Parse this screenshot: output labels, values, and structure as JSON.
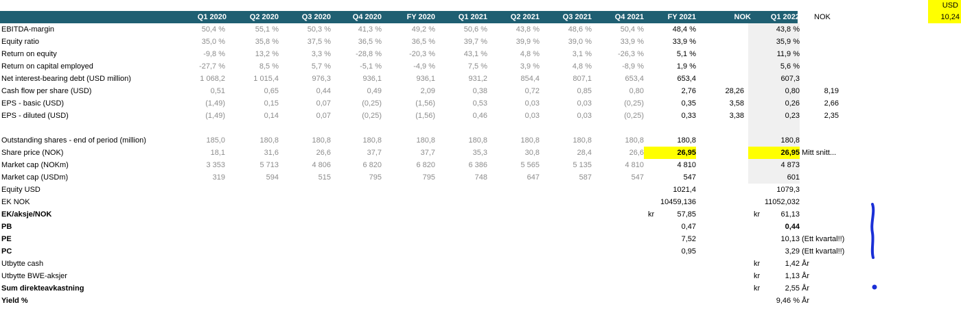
{
  "corner": {
    "currency": "USD",
    "rate": "10,24"
  },
  "header": {
    "periods": [
      "Q1 2020",
      "Q2 2020",
      "Q3 2020",
      "Q4 2020",
      "FY 2020",
      "Q1 2021",
      "Q2 2021",
      "Q3 2021",
      "Q4 2021",
      "FY 2021",
      "NOK",
      "Q1 2022"
    ],
    "nok_right": "NOK"
  },
  "rows": [
    {
      "label": "EBITDA-margin",
      "hist": [
        "50,4 %",
        "55,1 %",
        "50,3 %",
        "41,3 %",
        "49,2 %",
        "50,6 %",
        "43,8 %",
        "48,6 %",
        "50,4 %"
      ],
      "fy21": "48,4 %",
      "nok": "",
      "q122": "43,8 %",
      "nok2": ""
    },
    {
      "label": "Equity ratio",
      "hist": [
        "35,0 %",
        "35,8 %",
        "37,5 %",
        "36,5 %",
        "36,5 %",
        "39,7 %",
        "39,9 %",
        "39,0 %",
        "33,9 %"
      ],
      "fy21": "33,9 %",
      "nok": "",
      "q122": "35,9 %",
      "nok2": ""
    },
    {
      "label": "Return on equity",
      "hist": [
        "-9,8 %",
        "13,2 %",
        "3,3 %",
        "-28,8 %",
        "-20,3 %",
        "43,1 %",
        "4,8 %",
        "3,1 %",
        "-26,3 %"
      ],
      "fy21": "5,1 %",
      "nok": "",
      "q122": "11,9 %",
      "nok2": ""
    },
    {
      "label": "Return on capital employed",
      "hist": [
        "-27,7 %",
        "8,5 %",
        "5,7 %",
        "-5,1 %",
        "-4,9 %",
        "7,5 %",
        "3,9 %",
        "4,8 %",
        "-8,9 %"
      ],
      "fy21": "1,9 %",
      "nok": "",
      "q122": "5,6 %",
      "nok2": ""
    },
    {
      "label": "Net interest-bearing debt (USD million)",
      "hist": [
        "1 068,2",
        "1 015,4",
        "976,3",
        "936,1",
        "936,1",
        "931,2",
        "854,4",
        "807,1",
        "653,4"
      ],
      "fy21": "653,4",
      "nok": "",
      "q122": "607,3",
      "nok2": ""
    },
    {
      "label": "Cash flow per share (USD)",
      "hist": [
        "0,51",
        "0,65",
        "0,44",
        "0,49",
        "2,09",
        "0,38",
        "0,72",
        "0,85",
        "0,80"
      ],
      "fy21": "2,76",
      "nok": "28,26",
      "q122": "0,80",
      "nok2": "8,19"
    },
    {
      "label": "EPS - basic (USD)",
      "hist": [
        "(1,49)",
        "0,15",
        "0,07",
        "(0,25)",
        "(1,56)",
        "0,53",
        "0,03",
        "0,03",
        "(0,25)"
      ],
      "fy21": "0,35",
      "nok": "3,58",
      "q122": "0,26",
      "nok2": "2,66"
    },
    {
      "label": "EPS - diluted (USD)",
      "hist": [
        "(1,49)",
        "0,14",
        "0,07",
        "(0,25)",
        "(1,56)",
        "0,46",
        "0,03",
        "0,03",
        "(0,25)"
      ],
      "fy21": "0,33",
      "nok": "3,38",
      "q122": "0,23",
      "nok2": "2,35"
    },
    {
      "label": "",
      "hist": [
        "",
        "",
        "",
        "",
        "",
        "",
        "",
        "",
        ""
      ],
      "fy21": "",
      "nok": "",
      "q122": "",
      "nok2": ""
    },
    {
      "label": "Outstanding shares - end of period (million)",
      "hist": [
        "185,0",
        "180,8",
        "180,8",
        "180,8",
        "180,8",
        "180,8",
        "180,8",
        "180,8",
        "180,8"
      ],
      "fy21": "180,8",
      "nok": "",
      "q122": "180,8",
      "nok2": ""
    },
    {
      "label": "Share price (NOK)",
      "hist": [
        "18,1",
        "31,6",
        "26,6",
        "37,7",
        "37,7",
        "35,3",
        "30,8",
        "28,4",
        "26,6"
      ],
      "fy21": "26,95",
      "nok": "",
      "q122": "26,95",
      "nok2": "Mitt snitt..."
    },
    {
      "label": "Market cap (NOKm)",
      "hist": [
        "3 353",
        "5 713",
        "4 806",
        "6 820",
        "6 820",
        "6 386",
        "5 565",
        "5 135",
        "4 810"
      ],
      "fy21": "4 810",
      "nok": "",
      "q122": "4 873",
      "nok2": ""
    },
    {
      "label": "Market cap (USDm)",
      "hist": [
        "319",
        "594",
        "515",
        "795",
        "795",
        "748",
        "647",
        "587",
        "547"
      ],
      "fy21": "547",
      "nok": "",
      "q122": "601",
      "nok2": ""
    }
  ],
  "extra": {
    "equity_usd": {
      "label": "Equity USD",
      "fy21": "1021,4",
      "q122": "1079,3"
    },
    "ek_nok": {
      "label": "EK NOK",
      "fy21": "10459,136",
      "q122": "11052,032"
    },
    "ek_aksje": {
      "label": "EK/aksje/NOK",
      "kr": "kr",
      "fy21": "57,85",
      "q122": "61,13"
    },
    "pb": {
      "label": "PB",
      "fy21": "0,47",
      "q122": "0,44"
    },
    "pe": {
      "label": "PE",
      "fy21": "7,52",
      "q122": "10,13",
      "note": "(Ett kvartal!!)"
    },
    "pc": {
      "label": "PC",
      "fy21": "0,95",
      "q122": "3,29",
      "note": "(Ett kvartal!!)"
    },
    "utbytte_cash": {
      "label": "Utbytte cash",
      "kr": "kr",
      "value": "1,42",
      "unit": "År"
    },
    "utbytte_bwe": {
      "label": "Utbytte BWE-aksjer",
      "kr": "kr",
      "value": "1,13",
      "unit": "År"
    },
    "sum": {
      "label": "Sum direkteavkastning",
      "kr": "kr",
      "value": "2,55",
      "unit": "År"
    },
    "yield": {
      "label": "Yield %",
      "value": "9,46 %",
      "unit": "År"
    }
  },
  "colors": {
    "header_bg": "#1f5f72",
    "highlight": "#ffff00",
    "ink_blue": "#1a2fd6",
    "muted": "#8c8c8c"
  }
}
